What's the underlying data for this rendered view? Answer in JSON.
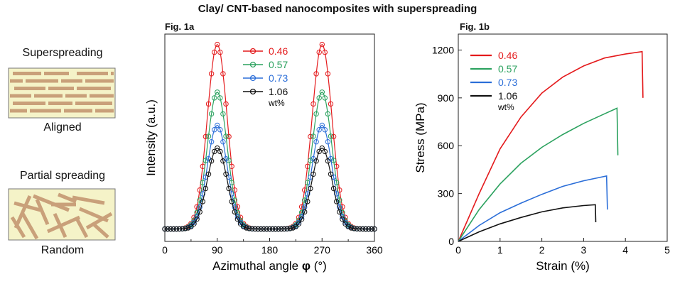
{
  "title": "Clay/ CNT-based nanocomposites with superspreading",
  "schematic": {
    "top_label": "Superspreading",
    "top_caption": "Aligned",
    "bottom_label": "Partial spreading",
    "bottom_caption": "Random",
    "box_fill": "#f5f3c8",
    "platelet_color": "#c9a07a"
  },
  "figures": [
    {
      "fig_label": "Fig. 1a",
      "chart_data": {
        "type": "line",
        "title": "",
        "xlabel": "Azimuthal angle",
        "xlabel_symbol": "φ",
        "xlabel_unit": " (°)",
        "ylabel": "Intensity (a.u.)",
        "xlim": [
          0,
          360
        ],
        "xticks": [
          0,
          90,
          180,
          270,
          360
        ],
        "ylim": [
          0,
          1
        ],
        "baseline": 0.06,
        "peak_centers": [
          90,
          270
        ],
        "peak_sigma": 17,
        "legend_unit": "wt%",
        "series": [
          {
            "name": "0.46",
            "color": "#e41a1c",
            "peak": 0.95
          },
          {
            "name": "0.57",
            "color": "#2ca25f",
            "peak": 0.72
          },
          {
            "name": "0.73",
            "color": "#2b6ed8",
            "peak": 0.56
          },
          {
            "name": "1.06",
            "color": "#111111",
            "peak": 0.45
          }
        ]
      }
    },
    {
      "fig_label": "Fig. 1b",
      "chart_data": {
        "type": "line",
        "title": "",
        "xlabel": "Strain (%)",
        "ylabel": "Stress (MPa)",
        "xlim": [
          0,
          5
        ],
        "xticks": [
          0,
          1,
          2,
          3,
          4,
          5
        ],
        "ylim": [
          0,
          1300
        ],
        "yticks": [
          0,
          300,
          600,
          900,
          1200
        ],
        "legend_unit": "wt%",
        "series": [
          {
            "name": "0.46",
            "color": "#e41a1c",
            "points": [
              [
                0,
                0
              ],
              [
                0.5,
                300
              ],
              [
                1,
                580
              ],
              [
                1.5,
                780
              ],
              [
                2,
                930
              ],
              [
                2.5,
                1030
              ],
              [
                3,
                1100
              ],
              [
                3.5,
                1150
              ],
              [
                4,
                1175
              ],
              [
                4.4,
                1190
              ],
              [
                4.42,
                900
              ]
            ]
          },
          {
            "name": "0.57",
            "color": "#2ca25f",
            "points": [
              [
                0,
                0
              ],
              [
                0.5,
                200
              ],
              [
                1,
                360
              ],
              [
                1.5,
                490
              ],
              [
                2,
                590
              ],
              [
                2.5,
                670
              ],
              [
                3,
                740
              ],
              [
                3.5,
                800
              ],
              [
                3.8,
                835
              ],
              [
                3.82,
                540
              ]
            ]
          },
          {
            "name": "0.73",
            "color": "#2b6ed8",
            "points": [
              [
                0,
                0
              ],
              [
                0.5,
                100
              ],
              [
                1,
                180
              ],
              [
                1.5,
                240
              ],
              [
                2,
                295
              ],
              [
                2.5,
                345
              ],
              [
                3,
                380
              ],
              [
                3.55,
                410
              ],
              [
                3.57,
                200
              ]
            ]
          },
          {
            "name": "1.06",
            "color": "#111111",
            "points": [
              [
                0,
                0
              ],
              [
                0.5,
                60
              ],
              [
                1,
                110
              ],
              [
                1.5,
                150
              ],
              [
                2,
                185
              ],
              [
                2.5,
                210
              ],
              [
                3,
                225
              ],
              [
                3.28,
                230
              ],
              [
                3.29,
                120
              ]
            ]
          }
        ]
      }
    }
  ]
}
